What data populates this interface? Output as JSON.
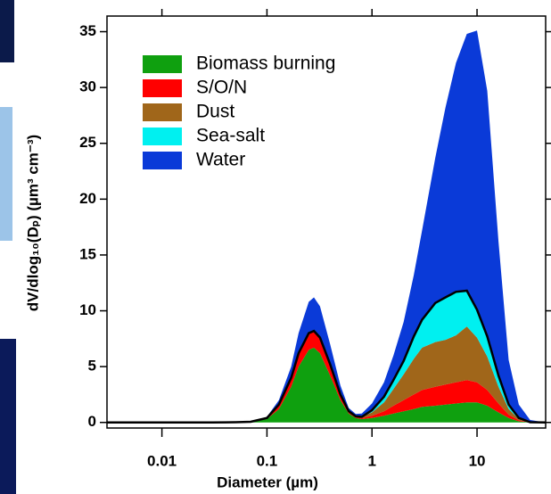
{
  "chart_data": {
    "type": "stacked_area",
    "x_label": "Diameter (µm)",
    "y_label": "dV/dlog₁₀(Dₚ) (µm³ cm⁻³)",
    "x": [
      0.003,
      0.01,
      0.03,
      0.05,
      0.07,
      0.1,
      0.13,
      0.17,
      0.2,
      0.25,
      0.28,
      0.32,
      0.4,
      0.5,
      0.6,
      0.7,
      0.8,
      1.0,
      1.3,
      1.6,
      2,
      2.5,
      3,
      4,
      5,
      6.3,
      8,
      10,
      12.5,
      16,
      20,
      25,
      32,
      45
    ],
    "series": [
      {
        "name": "Biomass burning",
        "color": "#0fa00f",
        "values": [
          0,
          0,
          0,
          0.02,
          0.05,
          0.3,
          1.2,
          3.2,
          5.0,
          6.5,
          6.7,
          6.2,
          4.2,
          2.0,
          0.8,
          0.4,
          0.3,
          0.4,
          0.6,
          0.8,
          1.0,
          1.2,
          1.4,
          1.5,
          1.6,
          1.7,
          1.8,
          1.8,
          1.5,
          0.9,
          0.4,
          0.1,
          0.02,
          0
        ]
      },
      {
        "name": "S/O/N",
        "color": "#ff0000",
        "values": [
          0,
          0,
          0,
          0,
          0.01,
          0.1,
          0.4,
          0.8,
          1.2,
          1.5,
          1.5,
          1.4,
          1.0,
          0.5,
          0.2,
          0.1,
          0.1,
          0.2,
          0.4,
          0.7,
          1.0,
          1.3,
          1.5,
          1.7,
          1.8,
          1.9,
          2.0,
          1.8,
          1.4,
          0.8,
          0.3,
          0.1,
          0,
          0
        ]
      },
      {
        "name": "Dust",
        "color": "#a0661a",
        "values": [
          0,
          0,
          0,
          0,
          0,
          0,
          0,
          0,
          0,
          0,
          0,
          0,
          0,
          0,
          0,
          0.05,
          0.1,
          0.3,
          0.8,
          1.5,
          2.3,
          3.2,
          3.8,
          4.0,
          4.0,
          4.2,
          4.8,
          4.0,
          3.0,
          1.5,
          0.5,
          0.1,
          0,
          0
        ]
      },
      {
        "name": "Sea-salt",
        "color": "#00f0f0",
        "values": [
          0,
          0,
          0,
          0,
          0,
          0,
          0,
          0,
          0,
          0,
          0,
          0,
          0,
          0,
          0,
          0,
          0,
          0.2,
          0.5,
          0.8,
          1.2,
          2.0,
          2.5,
          3.5,
          3.8,
          3.9,
          3.2,
          2.5,
          1.8,
          1.0,
          0.4,
          0.1,
          0,
          0
        ]
      },
      {
        "name": "Water",
        "color": "#0a3ad8",
        "values": [
          0,
          0,
          0,
          0,
          0.01,
          0.1,
          0.4,
          1.0,
          1.8,
          2.8,
          3.0,
          2.8,
          1.8,
          0.8,
          0.3,
          0.2,
          0.3,
          0.6,
          1.3,
          2.2,
          3.5,
          5.5,
          8,
          13,
          17,
          20.5,
          23,
          25,
          22,
          12,
          4,
          1.2,
          0.2,
          0
        ]
      }
    ],
    "x_log": true,
    "xlim": [
      0.003,
      45
    ],
    "xticks": [
      0.01,
      0.1,
      1,
      10
    ],
    "ylim": [
      -0.5,
      36.4
    ],
    "yticks": [
      0,
      5,
      10,
      15,
      20,
      25,
      30,
      35
    ],
    "legend": "upper left"
  }
}
